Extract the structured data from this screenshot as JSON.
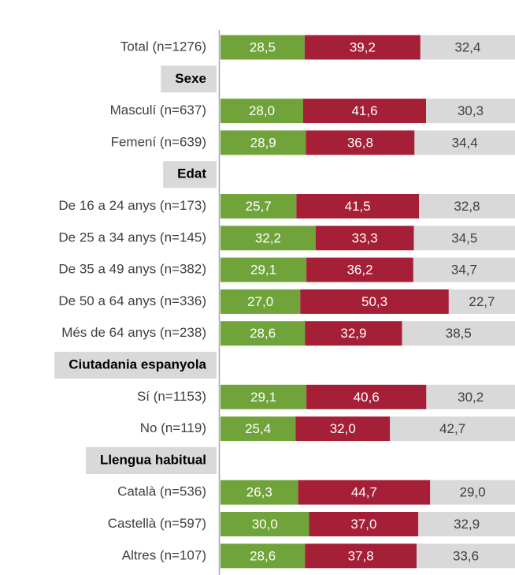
{
  "chart_data": {
    "type": "stacked-bar-horizontal",
    "categories": [
      "Total (n=1276)",
      "Sexe",
      "Masculí (n=637)",
      "Femení (n=639)",
      "Edat",
      "De 16 a 24 anys (n=173)",
      "De 25 a 34 anys (n=145)",
      "De 35 a 49 anys (n=382)",
      "De 50 a 64 anys (n=336)",
      "Més de 64 anys (n=238)",
      "Ciutadania espanyola",
      "Sí (n=1153)",
      "No (n=119)",
      "Llengua habitual",
      "Català (n=536)",
      "Castellà (n=597)",
      "Altres (n=107)"
    ],
    "xlim": [
      0,
      100
    ],
    "series": [
      {
        "color": "#70a33a",
        "label_color": "#ffffff",
        "values": [
          28.5,
          null,
          28.0,
          28.9,
          null,
          25.7,
          32.2,
          29.1,
          27.0,
          28.6,
          null,
          29.1,
          25.4,
          null,
          26.3,
          30.0,
          28.6
        ],
        "value_labels": [
          "28,5",
          null,
          "28,0",
          "28,9",
          null,
          "25,7",
          "32,2",
          "29,1",
          "27,0",
          "28,6",
          null,
          "29,1",
          "25,4",
          null,
          "26,3",
          "30,0",
          "28,6"
        ]
      },
      {
        "color": "#a51f36",
        "label_color": "#ffffff",
        "values": [
          39.2,
          null,
          41.6,
          36.8,
          null,
          41.5,
          33.3,
          36.2,
          50.3,
          32.9,
          null,
          40.6,
          32.0,
          null,
          44.7,
          37.0,
          37.8
        ],
        "value_labels": [
          "39,2",
          null,
          "41,6",
          "36,8",
          null,
          "41,5",
          "33,3",
          "36,2",
          "50,3",
          "32,9",
          null,
          "40,6",
          "32,0",
          null,
          "44,7",
          "37,0",
          "37,8"
        ]
      },
      {
        "color": "#d9d9d9",
        "label_color": "#404040",
        "values": [
          32.4,
          null,
          30.3,
          34.4,
          null,
          32.8,
          34.5,
          34.7,
          22.7,
          38.5,
          null,
          30.2,
          42.7,
          null,
          29.0,
          32.9,
          33.6
        ],
        "value_labels": [
          "32,4",
          null,
          "30,3",
          "34,4",
          null,
          "32,8",
          "34,5",
          "34,7",
          "22,7",
          "38,5",
          null,
          "30,2",
          "42,7",
          null,
          "29,0",
          "32,9",
          "33,6"
        ]
      }
    ]
  }
}
